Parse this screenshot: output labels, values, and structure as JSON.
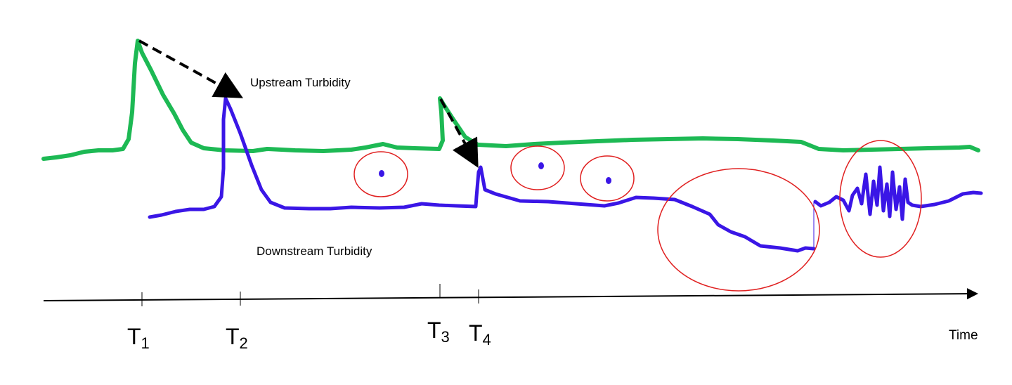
{
  "labels": {
    "upstream": "Upstream Turbidity",
    "downstream": "Downstream Turbidity",
    "axis": "Time"
  },
  "ticks": [
    {
      "base": "T",
      "sub": "1"
    },
    {
      "base": "T",
      "sub": "2"
    },
    {
      "base": "T",
      "sub": "3"
    },
    {
      "base": "T",
      "sub": "4"
    }
  ],
  "colors": {
    "upstream": "#1db954",
    "downstream": "#3a16e6",
    "anomaly_circle": "#e02020",
    "axis": "#000000"
  }
}
